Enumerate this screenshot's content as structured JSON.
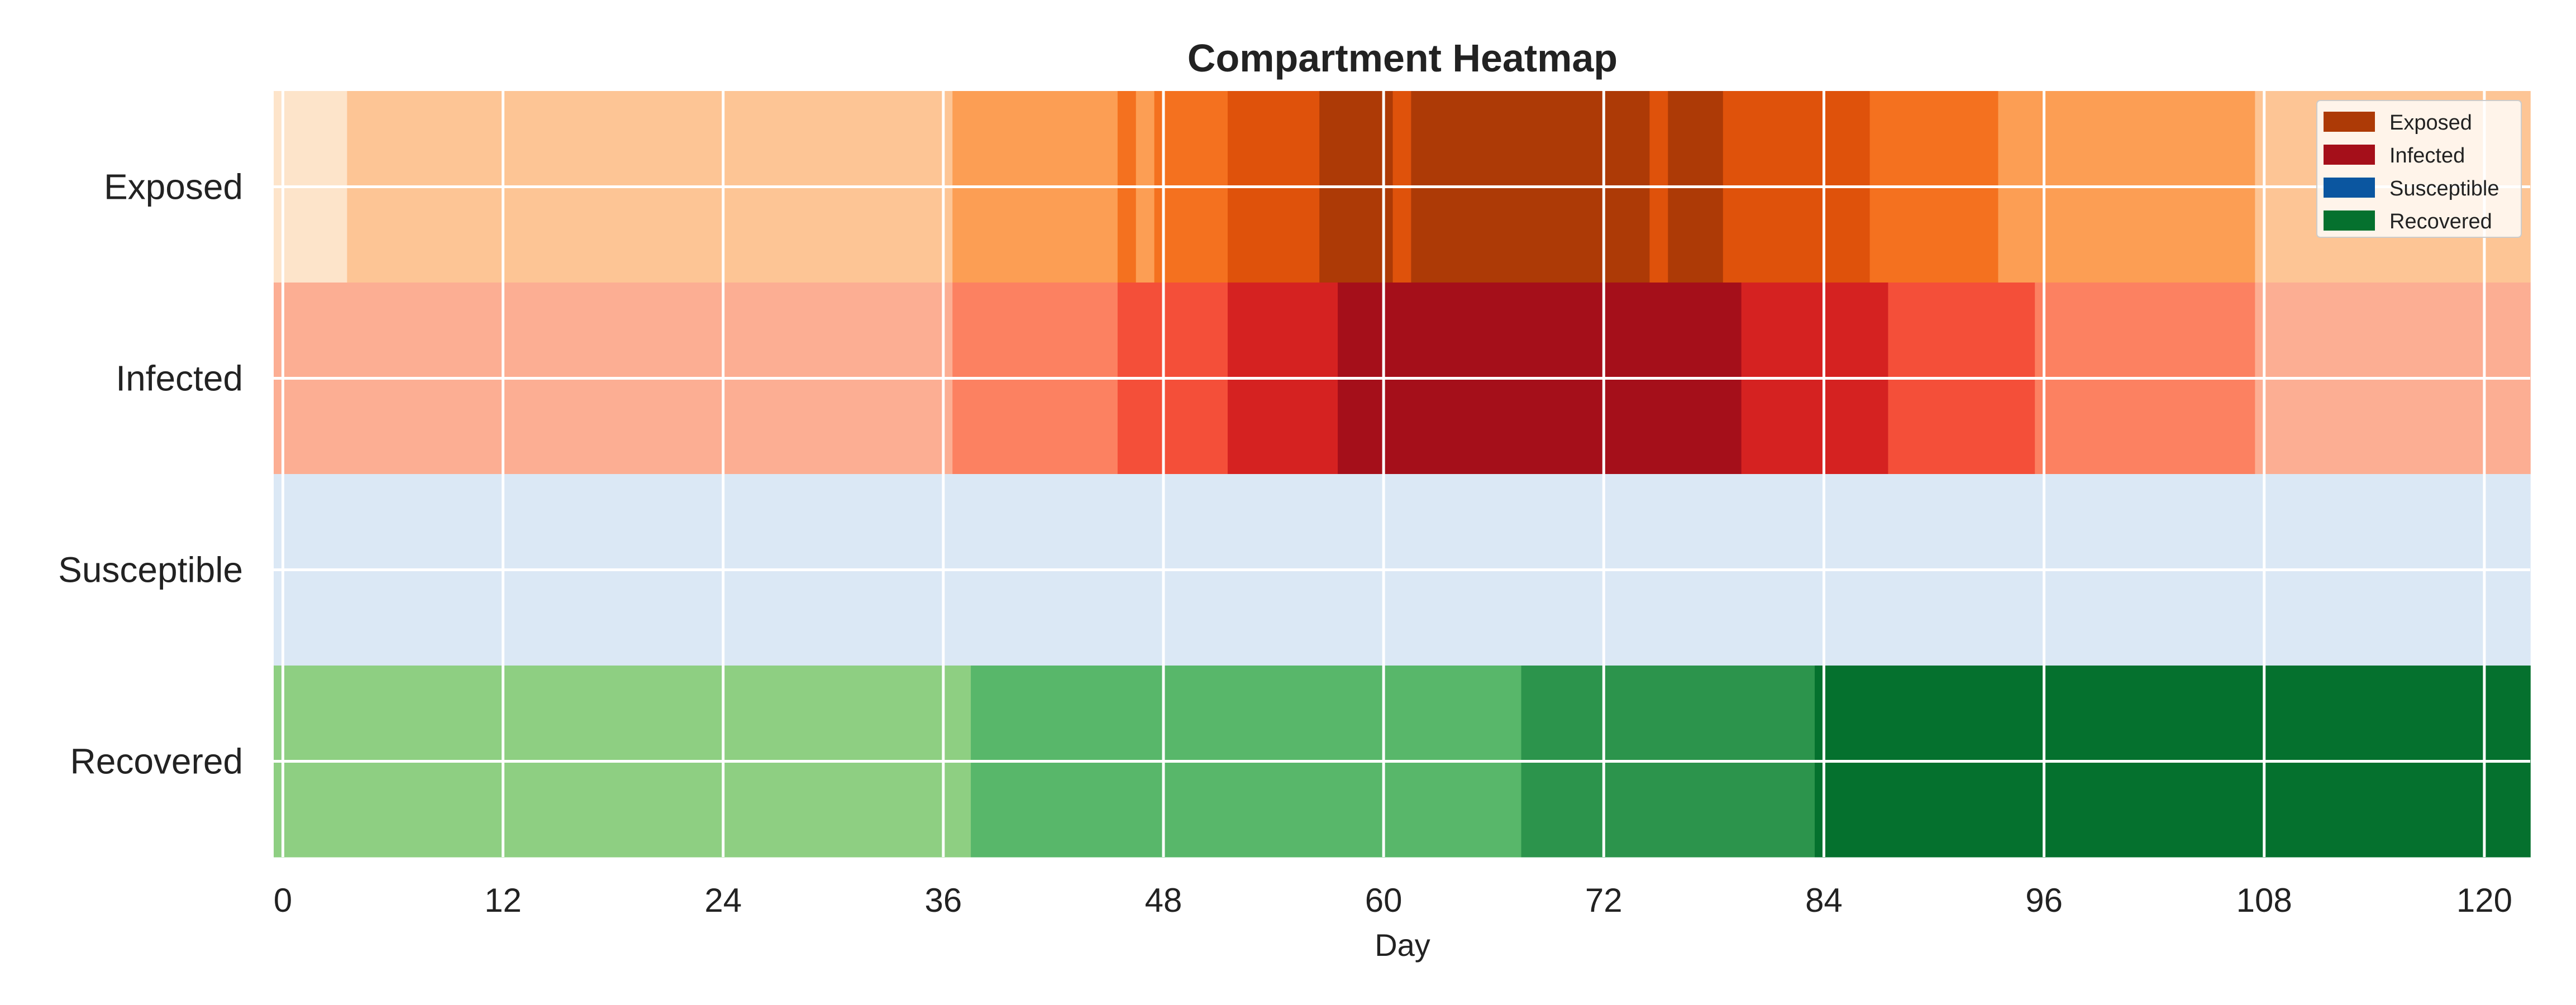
{
  "chart_data": {
    "type": "heatmap",
    "title": "Compartment Heatmap",
    "xlabel": "Day",
    "ylabel": "",
    "xlim": [
      -0.5,
      122.5
    ],
    "x_ticks": [
      0,
      12,
      24,
      36,
      48,
      60,
      72,
      84,
      96,
      108,
      120
    ],
    "x_tick_labels": [
      "0",
      "12",
      "24",
      "36",
      "48",
      "60",
      "72",
      "84",
      "96",
      "108",
      "120"
    ],
    "rows": [
      "Exposed",
      "Infected",
      "Susceptible",
      "Recovered"
    ],
    "grid": true,
    "legend_position": "top-right",
    "legend": [
      {
        "label": "Exposed",
        "color": "#ad3a06"
      },
      {
        "label": "Infected",
        "color": "#a50f1a"
      },
      {
        "label": "Susceptible",
        "color": "#0b56a0"
      },
      {
        "label": "Recovered",
        "color": "#05712e"
      }
    ],
    "level_scale": "0 = lightest shade … 5 = darkest shade of each row's colour map",
    "series": [
      {
        "name": "Exposed",
        "colormap": [
          "#fde4ca",
          "#fdc595",
          "#fc9e54",
          "#f4711f",
          "#df520b",
          "#ad3a06"
        ],
        "segments": [
          {
            "start": -0.5,
            "end": 3.5,
            "level": 0
          },
          {
            "start": 3.5,
            "end": 36.5,
            "level": 1
          },
          {
            "start": 36.5,
            "end": 45.5,
            "level": 2
          },
          {
            "start": 45.5,
            "end": 46.5,
            "level": 3
          },
          {
            "start": 46.5,
            "end": 47.5,
            "level": 2
          },
          {
            "start": 47.5,
            "end": 51.5,
            "level": 3
          },
          {
            "start": 51.5,
            "end": 56.5,
            "level": 4
          },
          {
            "start": 56.5,
            "end": 60.5,
            "level": 5
          },
          {
            "start": 60.5,
            "end": 61.5,
            "level": 4
          },
          {
            "start": 61.5,
            "end": 74.5,
            "level": 5
          },
          {
            "start": 74.5,
            "end": 75.5,
            "level": 4
          },
          {
            "start": 75.5,
            "end": 78.5,
            "level": 5
          },
          {
            "start": 78.5,
            "end": 86.5,
            "level": 4
          },
          {
            "start": 86.5,
            "end": 93.5,
            "level": 3
          },
          {
            "start": 93.5,
            "end": 107.5,
            "level": 2
          },
          {
            "start": 107.5,
            "end": 122.5,
            "level": 1
          }
        ]
      },
      {
        "name": "Infected",
        "colormap": [
          "#fdd4c2",
          "#fcae93",
          "#fc8161",
          "#f44f39",
          "#d52221",
          "#a50f1a"
        ],
        "segments": [
          {
            "start": -0.5,
            "end": 36.5,
            "level": 1
          },
          {
            "start": 36.5,
            "end": 45.5,
            "level": 2
          },
          {
            "start": 45.5,
            "end": 51.5,
            "level": 3
          },
          {
            "start": 51.5,
            "end": 57.5,
            "level": 4
          },
          {
            "start": 57.5,
            "end": 79.5,
            "level": 5
          },
          {
            "start": 79.5,
            "end": 87.5,
            "level": 4
          },
          {
            "start": 87.5,
            "end": 95.5,
            "level": 3
          },
          {
            "start": 95.5,
            "end": 107.5,
            "level": 2
          },
          {
            "start": 107.5,
            "end": 122.5,
            "level": 1
          }
        ]
      },
      {
        "name": "Susceptible",
        "colormap": [
          "#dbe8f5",
          "#b7d4ea",
          "#84bcdb",
          "#4a98c9",
          "#1c6cb1",
          "#0b56a0"
        ],
        "segments": [
          {
            "start": -0.5,
            "end": 122.5,
            "level": 0
          }
        ]
      },
      {
        "name": "Recovered",
        "colormap": [
          "#e5f5e0",
          "#c4e8bd",
          "#8ecf82",
          "#58b76a",
          "#2c944c",
          "#05712e"
        ],
        "segments": [
          {
            "start": -0.5,
            "end": 37.5,
            "level": 2
          },
          {
            "start": 37.5,
            "end": 67.5,
            "level": 3
          },
          {
            "start": 67.5,
            "end": 83.5,
            "level": 4
          },
          {
            "start": 83.5,
            "end": 122.5,
            "level": 5
          }
        ]
      }
    ]
  }
}
